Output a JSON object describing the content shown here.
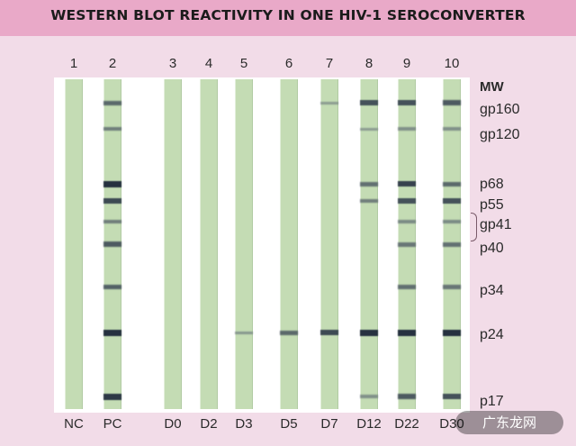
{
  "title": "WESTERN BLOT REACTIVITY IN ONE HIV-1 SEROCONVERTER",
  "lanes": [
    {
      "num": "1",
      "label": "NC",
      "bands": []
    },
    {
      "num": "2",
      "label": "PC",
      "bands": [
        {
          "mw": "gp160",
          "i": 0.6
        },
        {
          "mw": "gp120",
          "i": 0.45
        },
        {
          "mw": "p68",
          "i": 0.95
        },
        {
          "mw": "p55",
          "i": 0.8
        },
        {
          "mw": "gp41",
          "i": 0.45
        },
        {
          "mw": "p40",
          "i": 0.7
        },
        {
          "mw": "p34",
          "i": 0.65
        },
        {
          "mw": "p24",
          "i": 0.95
        },
        {
          "mw": "p17",
          "i": 0.9
        }
      ]
    },
    {
      "num": "3",
      "label": "D0",
      "bands": []
    },
    {
      "num": "4",
      "label": "D2",
      "bands": []
    },
    {
      "num": "5",
      "label": "D3",
      "bands": [
        {
          "mw": "p24",
          "i": 0.25
        }
      ]
    },
    {
      "num": "6",
      "label": "D5",
      "bands": [
        {
          "mw": "p24",
          "i": 0.6
        }
      ]
    },
    {
      "num": "7",
      "label": "D7",
      "bands": [
        {
          "mw": "gp160",
          "i": 0.2
        },
        {
          "mw": "p24",
          "i": 0.8
        }
      ]
    },
    {
      "num": "8",
      "label": "D12",
      "bands": [
        {
          "mw": "gp160",
          "i": 0.75
        },
        {
          "mw": "gp120",
          "i": 0.2
        },
        {
          "mw": "p68",
          "i": 0.55
        },
        {
          "mw": "p55",
          "i": 0.45
        },
        {
          "mw": "p24",
          "i": 0.95
        },
        {
          "mw": "p17",
          "i": 0.3
        }
      ]
    },
    {
      "num": "9",
      "label": "D22",
      "bands": [
        {
          "mw": "gp160",
          "i": 0.75
        },
        {
          "mw": "gp120",
          "i": 0.3
        },
        {
          "mw": "p68",
          "i": 0.85
        },
        {
          "mw": "p55",
          "i": 0.75
        },
        {
          "mw": "gp41",
          "i": 0.35
        },
        {
          "mw": "p40",
          "i": 0.5
        },
        {
          "mw": "p34",
          "i": 0.55
        },
        {
          "mw": "p24",
          "i": 0.95
        },
        {
          "mw": "p17",
          "i": 0.7
        }
      ]
    },
    {
      "num": "10",
      "label": "D30",
      "bands": [
        {
          "mw": "gp160",
          "i": 0.7
        },
        {
          "mw": "gp120",
          "i": 0.3
        },
        {
          "mw": "p68",
          "i": 0.6
        },
        {
          "mw": "p55",
          "i": 0.75
        },
        {
          "mw": "gp41",
          "i": 0.35
        },
        {
          "mw": "p40",
          "i": 0.55
        },
        {
          "mw": "p34",
          "i": 0.5
        },
        {
          "mw": "p24",
          "i": 0.95
        },
        {
          "mw": "p17",
          "i": 0.75
        }
      ]
    }
  ],
  "mw_header": "MW",
  "mw_markers": [
    "gp160",
    "gp120",
    "p68",
    "p55",
    "gp41",
    "p40",
    "p34",
    "p24",
    "p17"
  ],
  "watermark": "广东龙网"
}
